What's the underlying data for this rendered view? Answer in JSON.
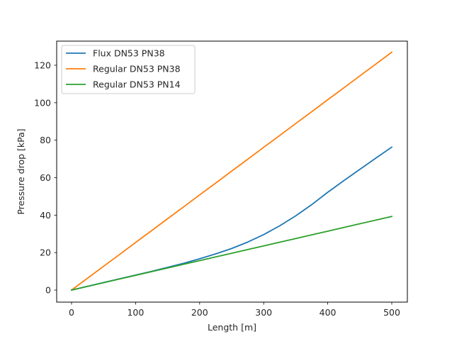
{
  "chart_data": {
    "type": "line",
    "title": "",
    "xlabel": "Length [m]",
    "ylabel": "Pressure drop [kPa]",
    "xlim": [
      -25,
      525
    ],
    "ylim": [
      -6.4,
      133.2
    ],
    "xticks": [
      0,
      100,
      200,
      300,
      400,
      500
    ],
    "yticks": [
      0,
      20,
      40,
      60,
      80,
      100,
      120
    ],
    "grid": false,
    "legend_position": "upper left",
    "x": [
      0,
      25,
      50,
      75,
      100,
      125,
      150,
      175,
      200,
      225,
      250,
      275,
      300,
      325,
      350,
      375,
      400,
      425,
      450,
      475,
      500
    ],
    "series": [
      {
        "name": "Flux DN53 PN38",
        "color": "#1f77b4",
        "values": [
          0,
          2.0,
          4.0,
          6.0,
          8.0,
          10.0,
          12.1,
          14.3,
          16.7,
          19.3,
          22.2,
          25.6,
          29.6,
          34.3,
          39.6,
          45.6,
          52.2,
          58.4,
          64.4,
          70.4,
          76.3
        ]
      },
      {
        "name": "Regular DN53 PN38",
        "color": "#ff7f0e",
        "values": [
          0,
          6.35,
          12.7,
          19.0,
          25.4,
          31.7,
          38.1,
          44.4,
          50.8,
          57.1,
          63.5,
          69.8,
          76.2,
          82.5,
          88.9,
          95.2,
          101.6,
          107.9,
          114.3,
          120.6,
          127.0
        ]
      },
      {
        "name": "Regular DN53 PN14",
        "color": "#2ca02c",
        "values": [
          0,
          1.97,
          3.93,
          5.9,
          7.86,
          9.83,
          11.8,
          13.76,
          15.72,
          17.69,
          19.65,
          21.62,
          23.58,
          25.55,
          27.51,
          29.48,
          31.44,
          33.41,
          35.37,
          37.34,
          39.3
        ]
      }
    ]
  },
  "legend": {
    "items": [
      {
        "label": "Flux DN53 PN38",
        "color": "#1f77b4"
      },
      {
        "label": "Regular DN53 PN38",
        "color": "#ff7f0e"
      },
      {
        "label": "Regular DN53 PN14",
        "color": "#2ca02c"
      }
    ]
  },
  "axes": {
    "xlabel": "Length [m]",
    "ylabel": "Pressure drop [kPa]",
    "xtick_labels": [
      "0",
      "100",
      "200",
      "300",
      "400",
      "500"
    ],
    "ytick_labels": [
      "0",
      "20",
      "40",
      "60",
      "80",
      "100",
      "120"
    ]
  }
}
